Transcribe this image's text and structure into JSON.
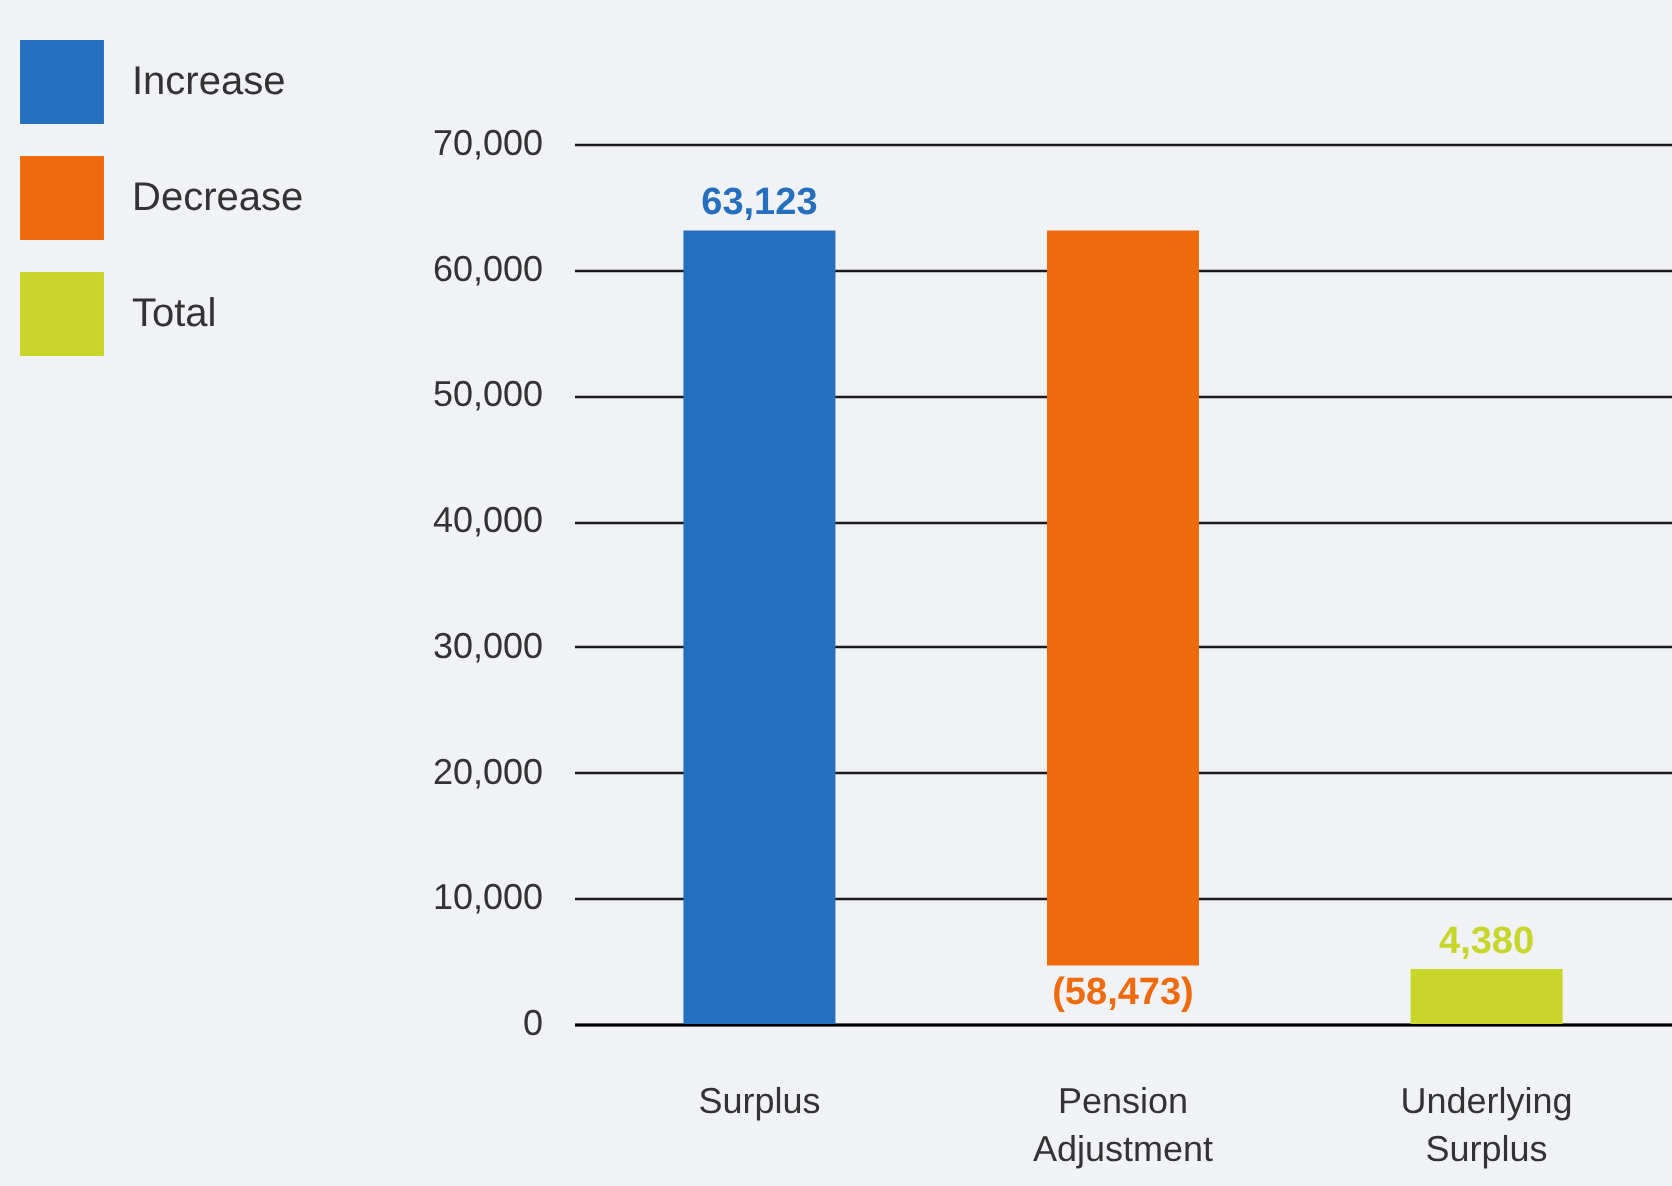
{
  "chart_data": {
    "type": "bar",
    "categories": [
      "Surplus",
      "Pension Adjustment",
      "Underlying Surplus"
    ],
    "series": [
      {
        "name": "Increase",
        "color": "#2470be",
        "values": [
          63123,
          null,
          null
        ],
        "base": [
          0,
          null,
          null
        ],
        "value_labels": [
          "63,123",
          null,
          null
        ]
      },
      {
        "name": "Decrease",
        "color": "#ef6a0a",
        "values": [
          null,
          -58473,
          null
        ],
        "base": [
          null,
          63123,
          null
        ],
        "value_labels": [
          null,
          "(58,473)",
          null
        ]
      },
      {
        "name": "Total",
        "color": "#c8d62c",
        "values": [
          null,
          null,
          4380
        ],
        "base": [
          null,
          null,
          0
        ],
        "value_labels": [
          null,
          null,
          "4,380"
        ]
      }
    ],
    "ylim": [
      0,
      70000
    ],
    "yticks": [
      0,
      {
        "value": 10000,
        "label": "10,000"
      },
      {
        "value": 20000,
        "label": "20,000"
      },
      {
        "value": 30000,
        "label": "30,000"
      },
      {
        "value": 40000,
        "label": "40,000"
      },
      {
        "value": 50000,
        "label": "50,000"
      },
      {
        "value": 60000,
        "label": "60,000"
      },
      {
        "value": 70000,
        "label": "70,000"
      }
    ],
    "grid": "y",
    "legend": "top left"
  }
}
